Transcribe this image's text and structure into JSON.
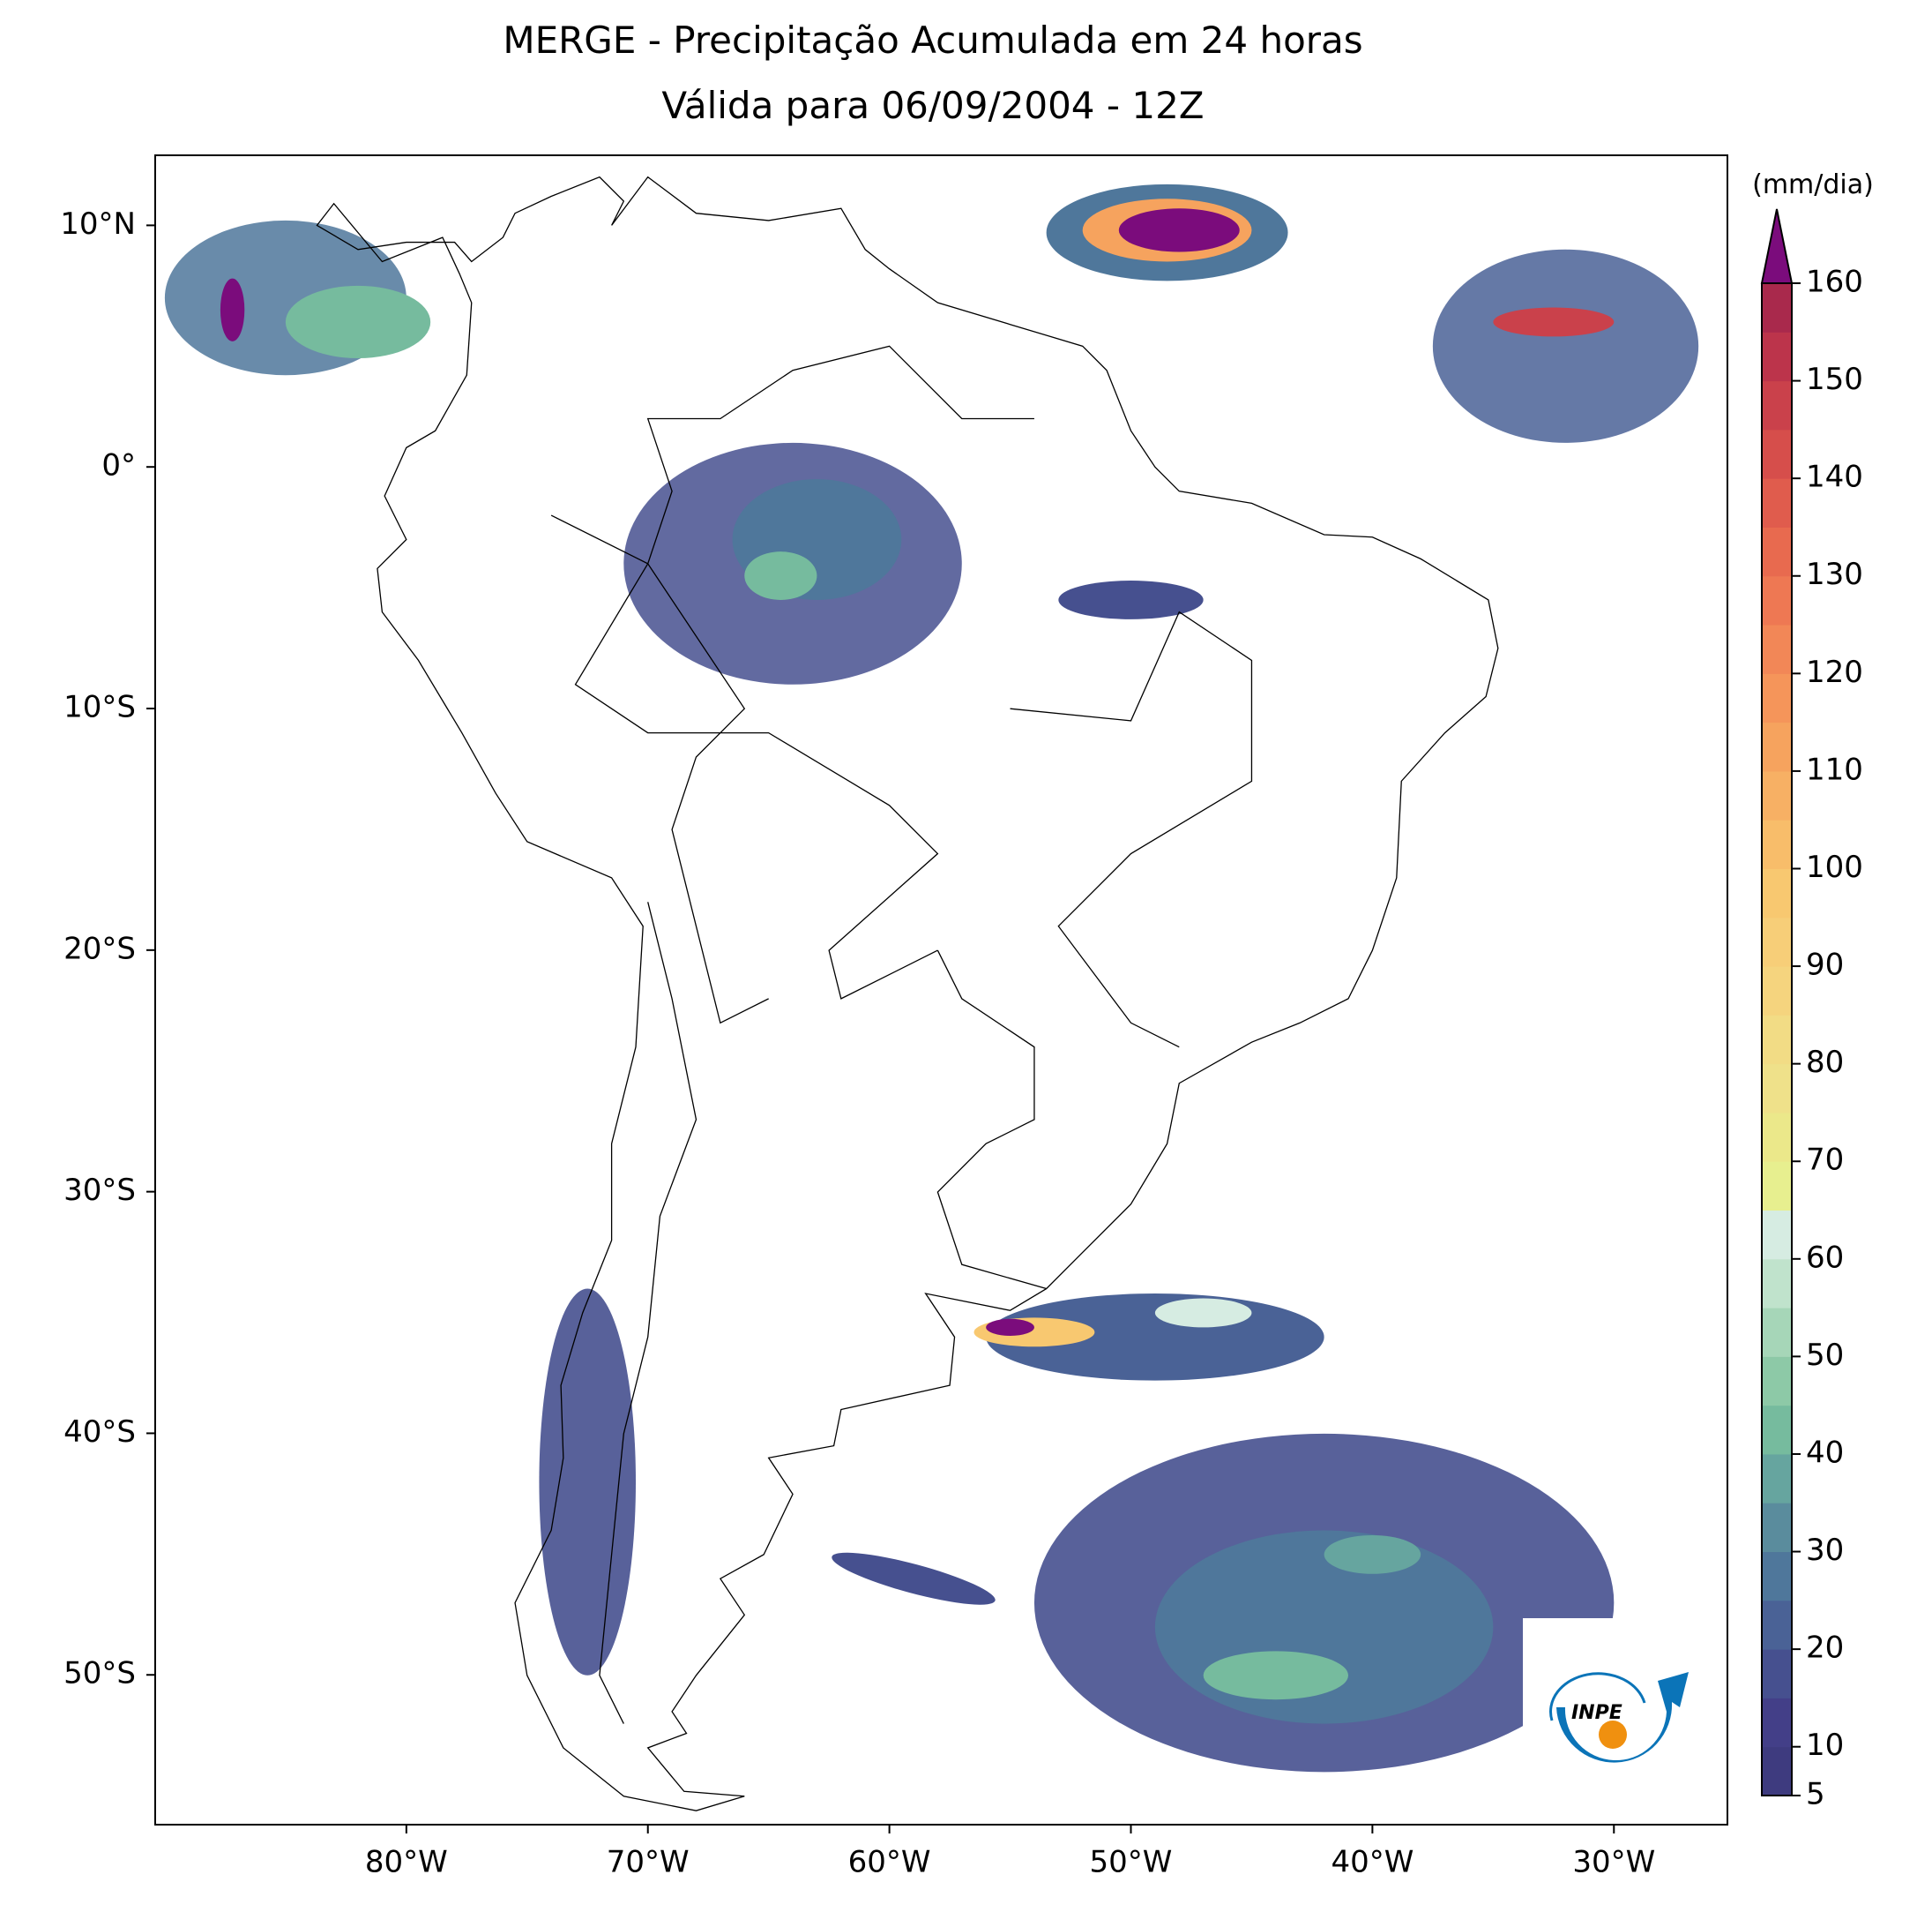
{
  "title": [
    "MERGE - Precipitação Acumulada em 24 horas",
    "Válida para 06/09/2004 - 12Z"
  ],
  "map": {
    "xlim": [
      -90.4,
      -25.3
    ],
    "ylim": [
      -56.2,
      12.9
    ],
    "xticks": [
      {
        "value": -80,
        "label": "80°W"
      },
      {
        "value": -70,
        "label": "70°W"
      },
      {
        "value": -60,
        "label": "60°W"
      },
      {
        "value": -50,
        "label": "50°W"
      },
      {
        "value": -40,
        "label": "40°W"
      },
      {
        "value": -30,
        "label": "30°W"
      }
    ],
    "yticks": [
      {
        "value": 10,
        "label": "10°N"
      },
      {
        "value": 0,
        "label": "0°"
      },
      {
        "value": -10,
        "label": "10°S"
      },
      {
        "value": -20,
        "label": "20°S"
      },
      {
        "value": -30,
        "label": "30°S"
      },
      {
        "value": -40,
        "label": "40°S"
      },
      {
        "value": -50,
        "label": "50°S"
      }
    ]
  },
  "colorbar": {
    "label": "(mm/dia)",
    "lim": [
      5,
      160
    ],
    "ticks": [
      5,
      10,
      20,
      30,
      40,
      50,
      60,
      70,
      80,
      90,
      100,
      110,
      120,
      130,
      140,
      150,
      160
    ],
    "colors": [
      "#3e3b7f",
      "#433f88",
      "#46508f",
      "#4a6296",
      "#4f779b",
      "#5a8c9d",
      "#66a59f",
      "#76bb9e",
      "#8dc9a7",
      "#a6d6b8",
      "#c0e3cc",
      "#d6ece2",
      "#e7ef8f",
      "#ebe88a",
      "#efe18a",
      "#f2dc85",
      "#f5d47e",
      "#f7ce78",
      "#f8c870",
      "#f8bd6a",
      "#f7b064",
      "#f6a35e",
      "#f5955a",
      "#f28757",
      "#ee7853",
      "#e86a4f",
      "#e05c4d",
      "#d64e4b",
      "#ca414b",
      "#bc344b",
      "#a9294c"
    ],
    "over_color": "#7b0c7c"
  },
  "logo": {
    "text": "INPE"
  }
}
